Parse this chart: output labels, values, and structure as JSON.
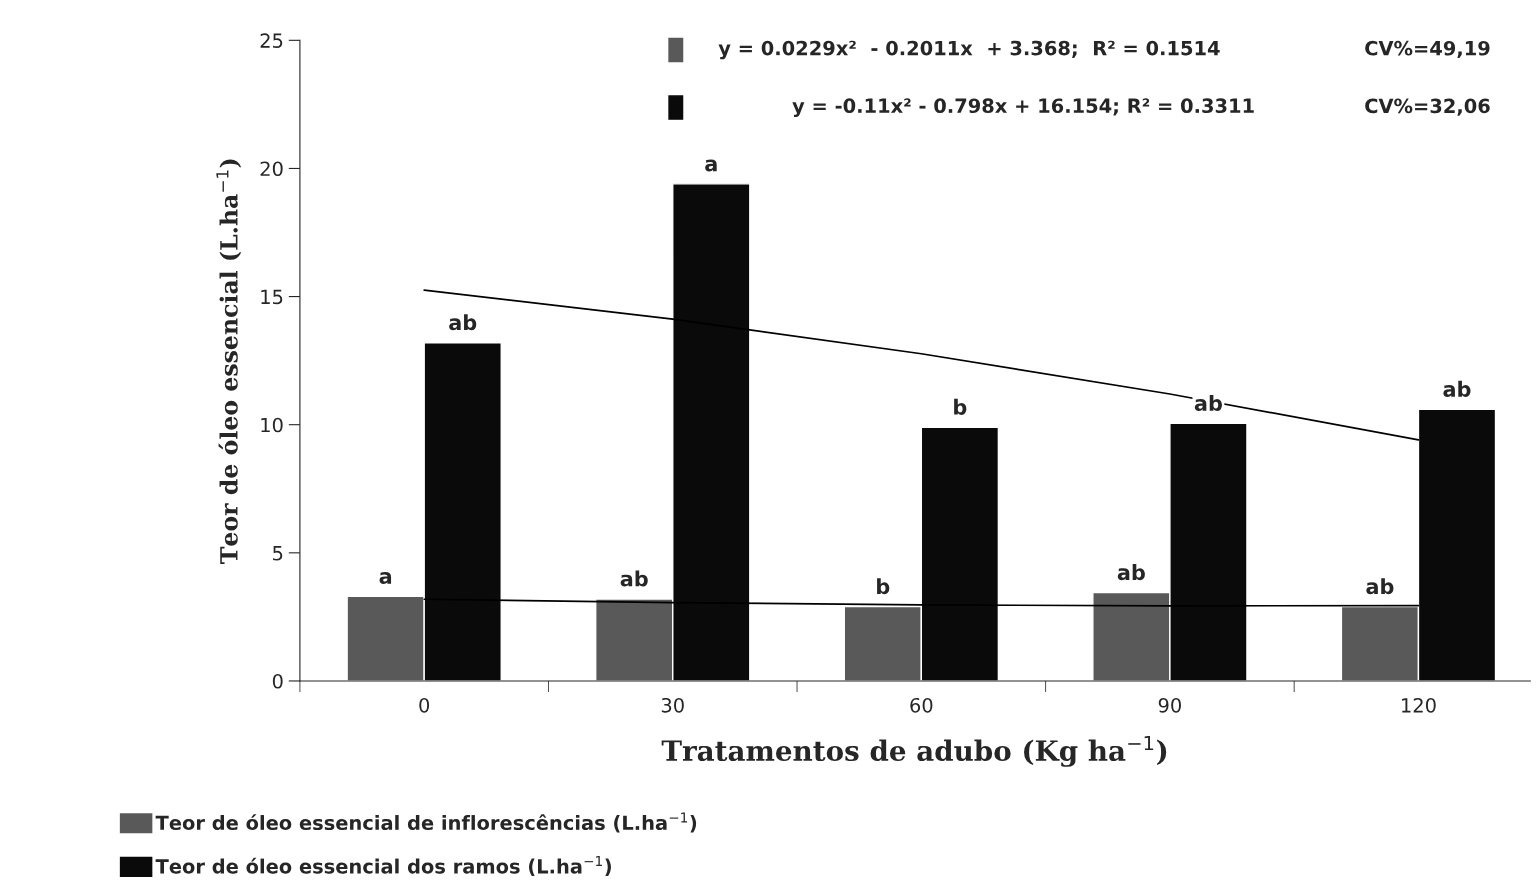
{
  "chart_data": {
    "type": "bar",
    "xlabel": "Tratamentos de adubo (Kg ha$^{−1}$)",
    "ylabel": "Teor de óleo essencial (L.ha$^{−1}$)",
    "categories": [
      "0",
      "30",
      "60",
      "90",
      "120"
    ],
    "series": [
      {
        "name": "Teor de óleo essencial de inflorescências (L.ha$^{−1}$)",
        "color": "#595959",
        "values": [
          3.3,
          3.2,
          2.9,
          3.45,
          2.9
        ],
        "value_labels": [
          "a",
          "ab",
          "b",
          "ab",
          "ab"
        ]
      },
      {
        "name": "Teor de óleo essencial dos ramos (L.ha$^{−1}$)",
        "color": "#0a0a0a",
        "values": [
          13.2,
          19.4,
          9.9,
          10.05,
          10.6
        ],
        "value_labels": [
          "ab",
          "a",
          "b",
          "ab",
          "ab"
        ]
      },
      {
        "type": "line",
        "color": "#000000",
        "x": [
          "0",
          "30",
          "60",
          "90",
          "120"
        ],
        "values": [
          3.19,
          3.06,
          2.97,
          2.93,
          2.94
        ]
      },
      {
        "type": "line",
        "color": "#000000",
        "x": [
          "0",
          "30",
          "60",
          "90",
          "120"
        ],
        "values": [
          15.25,
          14.12,
          12.77,
          11.2,
          9.41
        ]
      }
    ],
    "annotations": [
      "y = 0.0229x²  - 0.2011x  + 3.368;  R² = 0.1514",
      "CV%=49,19",
      "y = -0.11x² - 0.798x + 16.154; R² = 0.3311",
      "CV%=32,06"
    ],
    "ylim": [
      0,
      25
    ],
    "yticks": [
      0,
      5,
      10,
      15,
      20,
      25
    ],
    "legend": "bottom"
  }
}
